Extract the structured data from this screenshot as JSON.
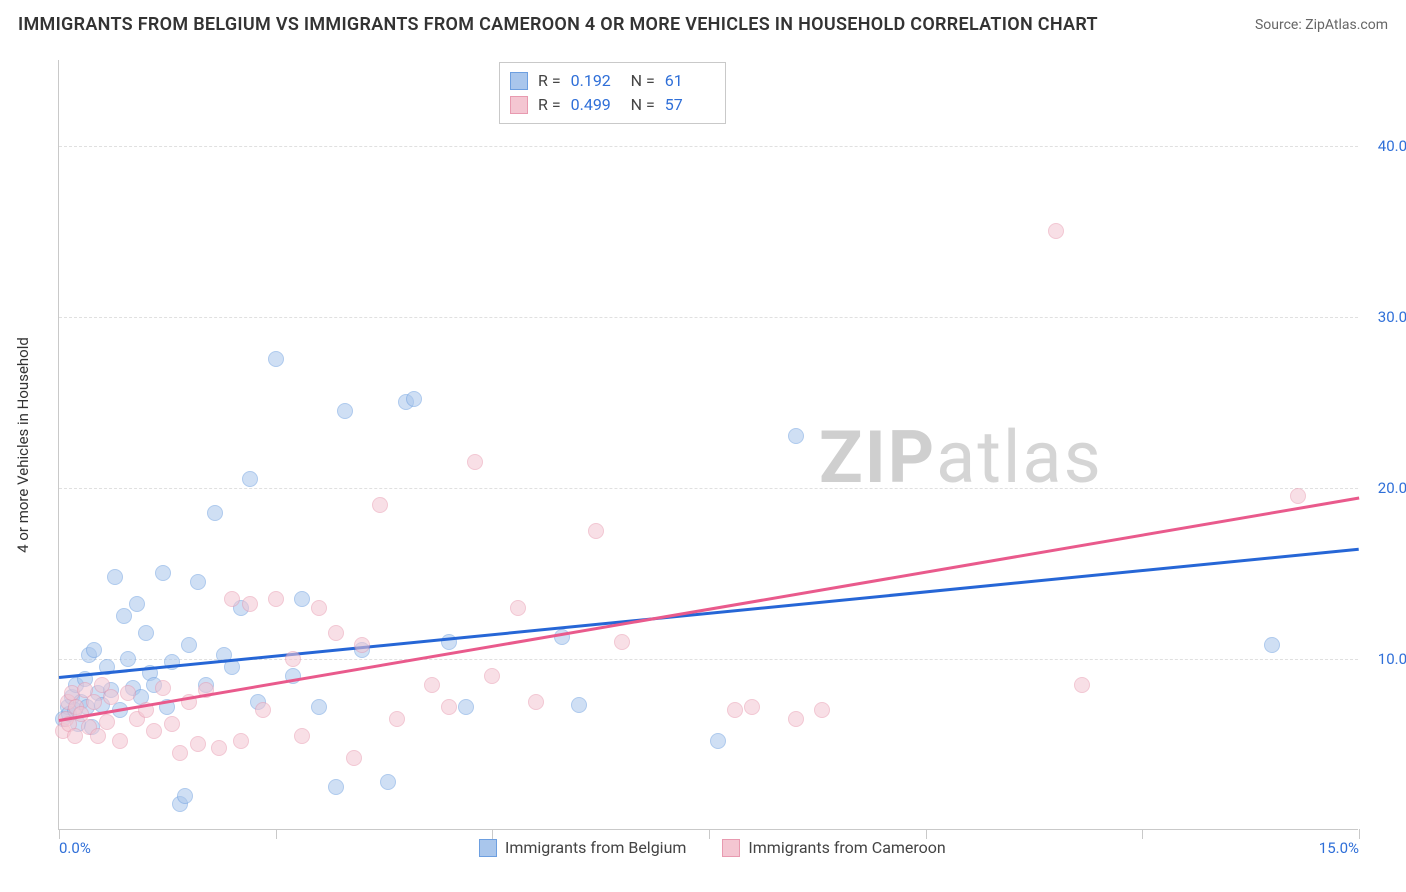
{
  "header": {
    "title": "IMMIGRANTS FROM BELGIUM VS IMMIGRANTS FROM CAMEROON 4 OR MORE VEHICLES IN HOUSEHOLD CORRELATION CHART",
    "source": "Source: ZipAtlas.com"
  },
  "watermark": {
    "pre": "ZIP",
    "post": "atlas"
  },
  "chart": {
    "type": "scatter",
    "ylabel": "4 or more Vehicles in Household",
    "xlim": [
      0,
      15
    ],
    "ylim": [
      0,
      45
    ],
    "y_ticks": [
      10,
      20,
      30,
      40
    ],
    "y_tick_labels": [
      "10.0%",
      "20.0%",
      "30.0%",
      "40.0%"
    ],
    "x_ticks": [
      0,
      2.5,
      5,
      7.5,
      10,
      12.5,
      15
    ],
    "x_tick_labels_shown": {
      "0": "0.0%",
      "15": "15.0%"
    },
    "background_color": "#ffffff",
    "grid_color": "#e0e0e0",
    "axis_color": "#c9c9c9",
    "tick_label_color": "#2f6fd8",
    "marker_radius": 8,
    "marker_opacity": 0.55,
    "series": [
      {
        "name": "Immigrants from Belgium",
        "color_fill": "#a9c6ec",
        "color_stroke": "#6d9fe0",
        "trend_color": "#2666d6",
        "R": "0.192",
        "N": "61",
        "trend": {
          "x1": 0,
          "y1": 9.0,
          "x2": 15,
          "y2": 16.5
        },
        "points": [
          [
            0.05,
            6.5
          ],
          [
            0.1,
            7.2
          ],
          [
            0.12,
            6.8
          ],
          [
            0.15,
            7.8
          ],
          [
            0.18,
            7.0
          ],
          [
            0.2,
            8.5
          ],
          [
            0.22,
            6.2
          ],
          [
            0.25,
            7.5
          ],
          [
            0.3,
            8.8
          ],
          [
            0.32,
            7.2
          ],
          [
            0.35,
            10.2
          ],
          [
            0.38,
            6.0
          ],
          [
            0.4,
            10.5
          ],
          [
            0.45,
            8.0
          ],
          [
            0.5,
            7.3
          ],
          [
            0.55,
            9.5
          ],
          [
            0.6,
            8.2
          ],
          [
            0.65,
            14.8
          ],
          [
            0.7,
            7.0
          ],
          [
            0.75,
            12.5
          ],
          [
            0.8,
            10.0
          ],
          [
            0.85,
            8.3
          ],
          [
            0.9,
            13.2
          ],
          [
            0.95,
            7.8
          ],
          [
            1.0,
            11.5
          ],
          [
            1.05,
            9.2
          ],
          [
            1.1,
            8.5
          ],
          [
            1.2,
            15.0
          ],
          [
            1.25,
            7.2
          ],
          [
            1.3,
            9.8
          ],
          [
            1.4,
            1.5
          ],
          [
            1.45,
            2.0
          ],
          [
            1.5,
            10.8
          ],
          [
            1.6,
            14.5
          ],
          [
            1.7,
            8.5
          ],
          [
            1.8,
            18.5
          ],
          [
            1.9,
            10.2
          ],
          [
            2.0,
            9.5
          ],
          [
            2.1,
            13.0
          ],
          [
            2.2,
            20.5
          ],
          [
            2.3,
            7.5
          ],
          [
            2.5,
            27.5
          ],
          [
            2.7,
            9.0
          ],
          [
            2.8,
            13.5
          ],
          [
            3.0,
            7.2
          ],
          [
            3.2,
            2.5
          ],
          [
            3.3,
            24.5
          ],
          [
            3.5,
            10.5
          ],
          [
            3.8,
            2.8
          ],
          [
            4.0,
            25.0
          ],
          [
            4.1,
            25.2
          ],
          [
            4.5,
            11.0
          ],
          [
            4.7,
            7.2
          ],
          [
            5.8,
            11.3
          ],
          [
            6.0,
            7.3
          ],
          [
            7.6,
            5.2
          ],
          [
            8.5,
            23.0
          ],
          [
            14.0,
            10.8
          ]
        ]
      },
      {
        "name": "Immigrants from Cameroon",
        "color_fill": "#f4c6d2",
        "color_stroke": "#e89ab0",
        "trend_color": "#e95a8c",
        "R": "0.499",
        "N": "57",
        "trend": {
          "x1": 0,
          "y1": 6.5,
          "x2": 15,
          "y2": 19.5
        },
        "points": [
          [
            0.05,
            5.8
          ],
          [
            0.08,
            6.5
          ],
          [
            0.1,
            7.5
          ],
          [
            0.12,
            6.2
          ],
          [
            0.15,
            8.0
          ],
          [
            0.18,
            5.5
          ],
          [
            0.2,
            7.2
          ],
          [
            0.25,
            6.8
          ],
          [
            0.3,
            8.2
          ],
          [
            0.35,
            6.0
          ],
          [
            0.4,
            7.5
          ],
          [
            0.45,
            5.5
          ],
          [
            0.5,
            8.5
          ],
          [
            0.55,
            6.3
          ],
          [
            0.6,
            7.8
          ],
          [
            0.7,
            5.2
          ],
          [
            0.8,
            8.0
          ],
          [
            0.9,
            6.5
          ],
          [
            1.0,
            7.0
          ],
          [
            1.1,
            5.8
          ],
          [
            1.2,
            8.3
          ],
          [
            1.3,
            6.2
          ],
          [
            1.4,
            4.5
          ],
          [
            1.5,
            7.5
          ],
          [
            1.6,
            5.0
          ],
          [
            1.7,
            8.2
          ],
          [
            1.85,
            4.8
          ],
          [
            2.0,
            13.5
          ],
          [
            2.1,
            5.2
          ],
          [
            2.2,
            13.2
          ],
          [
            2.35,
            7.0
          ],
          [
            2.5,
            13.5
          ],
          [
            2.7,
            10.0
          ],
          [
            2.8,
            5.5
          ],
          [
            3.0,
            13.0
          ],
          [
            3.2,
            11.5
          ],
          [
            3.4,
            4.2
          ],
          [
            3.5,
            10.8
          ],
          [
            3.7,
            19.0
          ],
          [
            3.9,
            6.5
          ],
          [
            4.3,
            8.5
          ],
          [
            4.5,
            7.2
          ],
          [
            4.8,
            21.5
          ],
          [
            5.0,
            9.0
          ],
          [
            5.3,
            13.0
          ],
          [
            5.5,
            7.5
          ],
          [
            6.2,
            17.5
          ],
          [
            6.5,
            11.0
          ],
          [
            7.8,
            7.0
          ],
          [
            8.0,
            7.2
          ],
          [
            8.5,
            6.5
          ],
          [
            8.8,
            7.0
          ],
          [
            11.5,
            35.0
          ],
          [
            11.8,
            8.5
          ],
          [
            14.3,
            19.5
          ]
        ]
      }
    ],
    "legend": {
      "series1_label": "Immigrants from Belgium",
      "series2_label": "Immigrants from Cameroon"
    }
  }
}
